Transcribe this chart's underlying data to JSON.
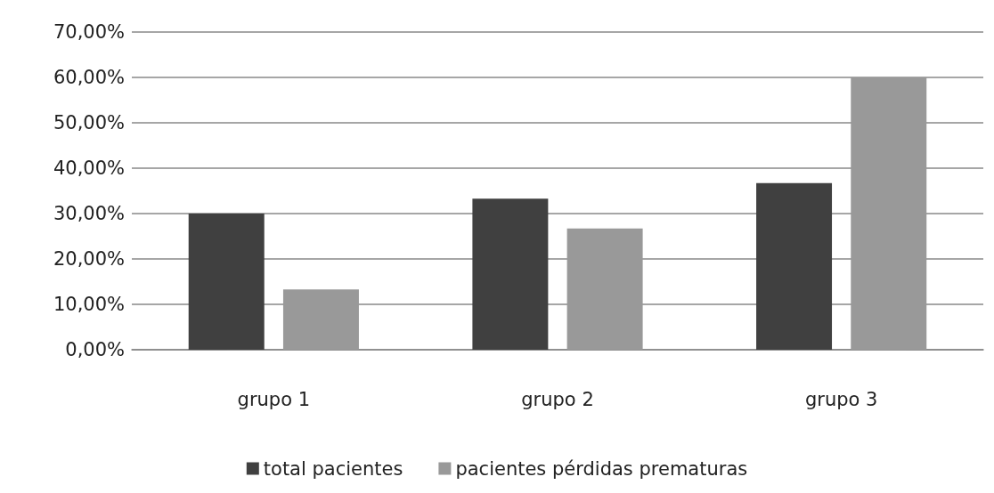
{
  "chart_data": {
    "type": "bar",
    "categories": [
      "grupo 1",
      "grupo 2",
      "grupo 3"
    ],
    "series": [
      {
        "name": "total pacientes",
        "color": "#404040",
        "values": [
          30,
          33.3,
          36.7
        ]
      },
      {
        "name": "pacientes pérdidas prematuras",
        "color": "#999999",
        "values": [
          13.3,
          26.7,
          60
        ]
      }
    ],
    "ylim": [
      0,
      70
    ],
    "yticks": [
      {
        "value": 0,
        "label": "0,00%"
      },
      {
        "value": 10,
        "label": "10,00%"
      },
      {
        "value": 20,
        "label": "20,00%"
      },
      {
        "value": 30,
        "label": "30,00%"
      },
      {
        "value": 40,
        "label": "40,00%"
      },
      {
        "value": 50,
        "label": "50,00%"
      },
      {
        "value": 60,
        "label": "60,00%"
      },
      {
        "value": 70,
        "label": "70,00%"
      }
    ],
    "grid": "y",
    "legend": "bottom"
  }
}
